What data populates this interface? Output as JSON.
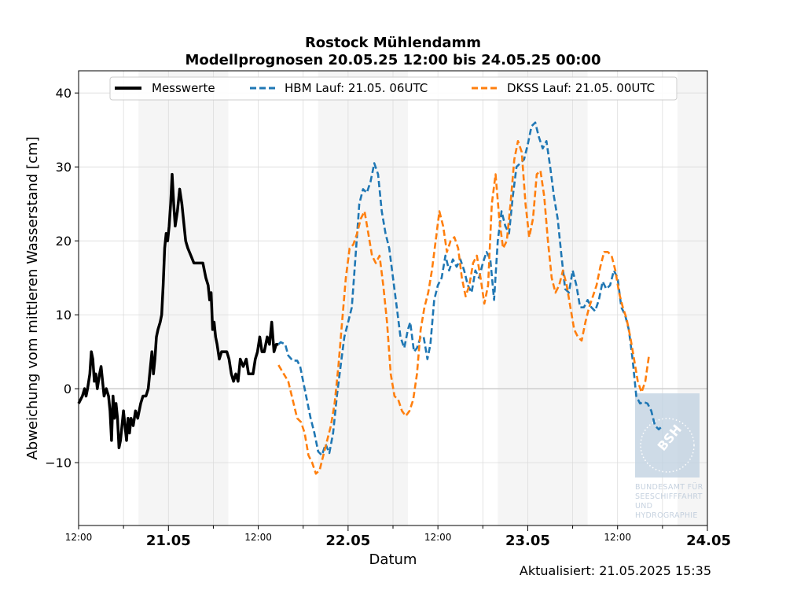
{
  "chart_data": {
    "type": "line",
    "title": [
      "Rostock Mühlendamm",
      "Modellprognosen 20.05.25 12:00 bis 24.05.25 00:00"
    ],
    "xlabel": "Datum",
    "ylabel": "Abweichung vom mittleren Wasserstand [cm]",
    "xlim": [
      0,
      84
    ],
    "ylim": [
      -18.5,
      43
    ],
    "x_unit": "hours since 20.05.25 12:00",
    "y_ticks": [
      {
        "value": -10,
        "label": "−10"
      },
      {
        "value": 0,
        "label": "0"
      },
      {
        "value": 10,
        "label": "10"
      },
      {
        "value": 20,
        "label": "20"
      },
      {
        "value": 30,
        "label": "30"
      },
      {
        "value": 40,
        "label": "40"
      }
    ],
    "x_ticks_major": [
      {
        "value": 12,
        "label": "21.05"
      },
      {
        "value": 36,
        "label": "22.05"
      },
      {
        "value": 60,
        "label": "23.05"
      },
      {
        "value": 84,
        "label": "24.05"
      }
    ],
    "x_ticks_minor": [
      {
        "value": 0,
        "label": "12:00"
      },
      {
        "value": 24,
        "label": "12:00"
      },
      {
        "value": 48,
        "label": "12:00"
      },
      {
        "value": 72,
        "label": "12:00"
      }
    ],
    "night_bands": [
      [
        8,
        20
      ],
      [
        32,
        44
      ],
      [
        56,
        68
      ],
      [
        80,
        84
      ]
    ],
    "grid": true,
    "legend_position": "top",
    "series": [
      {
        "name": "Messwerte",
        "color": "#000000",
        "style": "solid",
        "points": [
          [
            0,
            -2
          ],
          [
            0.5,
            -1
          ],
          [
            0.8,
            0
          ],
          [
            1,
            -1
          ],
          [
            1.2,
            0
          ],
          [
            1.5,
            2
          ],
          [
            1.7,
            5
          ],
          [
            1.9,
            4
          ],
          [
            2.1,
            1
          ],
          [
            2.3,
            2
          ],
          [
            2.5,
            0
          ],
          [
            2.8,
            2
          ],
          [
            3,
            3
          ],
          [
            3.2,
            1
          ],
          [
            3.4,
            -1
          ],
          [
            3.7,
            0
          ],
          [
            4,
            -1
          ],
          [
            4.2,
            -3
          ],
          [
            4.4,
            -7
          ],
          [
            4.6,
            -1
          ],
          [
            4.8,
            -4
          ],
          [
            5,
            -2
          ],
          [
            5.2,
            -4
          ],
          [
            5.4,
            -8
          ],
          [
            5.6,
            -7
          ],
          [
            5.8,
            -5
          ],
          [
            6,
            -3
          ],
          [
            6.2,
            -5
          ],
          [
            6.4,
            -7
          ],
          [
            6.6,
            -4
          ],
          [
            6.8,
            -6
          ],
          [
            7,
            -4
          ],
          [
            7.3,
            -5
          ],
          [
            7.6,
            -3
          ],
          [
            7.9,
            -4
          ],
          [
            8.3,
            -2
          ],
          [
            8.6,
            -1
          ],
          [
            9,
            -1
          ],
          [
            9.3,
            0
          ],
          [
            9.6,
            3
          ],
          [
            9.8,
            5
          ],
          [
            10,
            2
          ],
          [
            10.2,
            4
          ],
          [
            10.4,
            7
          ],
          [
            10.6,
            8
          ],
          [
            10.9,
            9
          ],
          [
            11.1,
            10
          ],
          [
            11.3,
            14
          ],
          [
            11.5,
            19
          ],
          [
            11.7,
            21
          ],
          [
            11.9,
            20
          ],
          [
            12.1,
            22
          ],
          [
            12.3,
            25
          ],
          [
            12.5,
            29
          ],
          [
            12.7,
            25
          ],
          [
            12.9,
            22
          ],
          [
            13.2,
            24
          ],
          [
            13.5,
            27
          ],
          [
            13.8,
            25
          ],
          [
            14,
            23
          ],
          [
            14.3,
            20
          ],
          [
            14.6,
            19
          ],
          [
            15,
            18
          ],
          [
            15.4,
            17
          ],
          [
            15.8,
            17
          ],
          [
            16.2,
            17
          ],
          [
            16.6,
            17
          ],
          [
            17,
            15
          ],
          [
            17.3,
            14
          ],
          [
            17.5,
            12
          ],
          [
            17.7,
            13
          ],
          [
            17.9,
            8
          ],
          [
            18.1,
            9
          ],
          [
            18.3,
            7
          ],
          [
            18.5,
            6
          ],
          [
            18.8,
            4
          ],
          [
            19.1,
            5
          ],
          [
            19.5,
            5
          ],
          [
            19.8,
            5
          ],
          [
            20.1,
            4
          ],
          [
            20.4,
            2
          ],
          [
            20.7,
            1
          ],
          [
            21,
            2
          ],
          [
            21.3,
            1
          ],
          [
            21.6,
            4
          ],
          [
            22,
            3
          ],
          [
            22.4,
            4
          ],
          [
            22.7,
            2
          ],
          [
            23,
            2
          ],
          [
            23.3,
            2
          ],
          [
            23.6,
            4
          ],
          [
            23.9,
            5
          ],
          [
            24.2,
            7
          ],
          [
            24.5,
            5
          ],
          [
            24.8,
            5
          ],
          [
            25.2,
            7
          ],
          [
            25.5,
            6
          ],
          [
            25.8,
            9
          ],
          [
            26.1,
            5
          ],
          [
            26.4,
            6
          ],
          [
            26.7,
            6
          ]
        ]
      },
      {
        "name": "HBM Lauf: 21.05. 06UTC",
        "color": "#1f77b4",
        "style": "dashed",
        "points": [
          [
            26.7,
            6
          ],
          [
            27,
            6.3
          ],
          [
            27.6,
            6
          ],
          [
            28,
            4.5
          ],
          [
            28.6,
            3.8
          ],
          [
            29.2,
            3.8
          ],
          [
            29.6,
            3
          ],
          [
            30,
            1
          ],
          [
            30.6,
            -2
          ],
          [
            31,
            -4
          ],
          [
            31.5,
            -6
          ],
          [
            32,
            -8.5
          ],
          [
            32.5,
            -9
          ],
          [
            33,
            -7.5
          ],
          [
            33.5,
            -8.7
          ],
          [
            34,
            -6
          ],
          [
            34.5,
            -1
          ],
          [
            35,
            3
          ],
          [
            35.5,
            7
          ],
          [
            36,
            9
          ],
          [
            36.5,
            11
          ],
          [
            37,
            18
          ],
          [
            37.5,
            25
          ],
          [
            38,
            27
          ],
          [
            38.5,
            26.5
          ],
          [
            39,
            28
          ],
          [
            39.5,
            30.5
          ],
          [
            40,
            29
          ],
          [
            40.5,
            24
          ],
          [
            41,
            21
          ],
          [
            41.5,
            19
          ],
          [
            42,
            15
          ],
          [
            42.5,
            11
          ],
          [
            43,
            7
          ],
          [
            43.5,
            5.5
          ],
          [
            44,
            8
          ],
          [
            44.3,
            9
          ],
          [
            44.8,
            5
          ],
          [
            45.2,
            5.5
          ],
          [
            45.7,
            7
          ],
          [
            46.1,
            7
          ],
          [
            46.6,
            4
          ],
          [
            47,
            6
          ],
          [
            47.5,
            12
          ],
          [
            48,
            14
          ],
          [
            48.5,
            15
          ],
          [
            49,
            18
          ],
          [
            49.5,
            16
          ],
          [
            50,
            17.5
          ],
          [
            50.5,
            16.5
          ],
          [
            51,
            17.5
          ],
          [
            51.5,
            16
          ],
          [
            52,
            14
          ],
          [
            52.5,
            13
          ],
          [
            53,
            16
          ],
          [
            53.5,
            15
          ],
          [
            54,
            17
          ],
          [
            54.5,
            18.5
          ],
          [
            55,
            17.5
          ],
          [
            55.5,
            12
          ],
          [
            56,
            20
          ],
          [
            56.5,
            24
          ],
          [
            57,
            22
          ],
          [
            57.5,
            21
          ],
          [
            58,
            26
          ],
          [
            58.5,
            30
          ],
          [
            59,
            30.5
          ],
          [
            59.5,
            31
          ],
          [
            60,
            33
          ],
          [
            60.5,
            35.5
          ],
          [
            61,
            36
          ],
          [
            61.5,
            34
          ],
          [
            62,
            32.5
          ],
          [
            62.5,
            33.5
          ],
          [
            63,
            30
          ],
          [
            63.5,
            26
          ],
          [
            64,
            23
          ],
          [
            64.5,
            18
          ],
          [
            65,
            13.5
          ],
          [
            65.5,
            13
          ],
          [
            66,
            16
          ],
          [
            66.5,
            14
          ],
          [
            67,
            11
          ],
          [
            67.5,
            11
          ],
          [
            68,
            12
          ],
          [
            68.5,
            11
          ],
          [
            69,
            10.5
          ],
          [
            69.5,
            12
          ],
          [
            70,
            14.5
          ],
          [
            70.5,
            13.5
          ],
          [
            71,
            14
          ],
          [
            71.5,
            16
          ],
          [
            72,
            15
          ],
          [
            72.5,
            11
          ],
          [
            73,
            10
          ],
          [
            73.5,
            8
          ],
          [
            74,
            4
          ],
          [
            74.5,
            -1
          ],
          [
            75,
            -2
          ],
          [
            75.5,
            -1.8
          ],
          [
            76,
            -2
          ],
          [
            76.5,
            -3
          ],
          [
            77,
            -5
          ],
          [
            77.5,
            -5.5
          ],
          [
            78,
            -5
          ]
        ]
      },
      {
        "name": "DKSS Lauf: 21.05. 00UTC",
        "color": "#ff7f0e",
        "style": "dashed",
        "points": [
          [
            26.7,
            3.2
          ],
          [
            27.4,
            2
          ],
          [
            28,
            1
          ],
          [
            28.6,
            -1.5
          ],
          [
            29.2,
            -4
          ],
          [
            29.7,
            -4.5
          ],
          [
            30.2,
            -6
          ],
          [
            30.7,
            -9
          ],
          [
            31.2,
            -10
          ],
          [
            31.7,
            -11.5
          ],
          [
            32.2,
            -11
          ],
          [
            32.7,
            -9
          ],
          [
            33.2,
            -7
          ],
          [
            33.7,
            -5
          ],
          [
            34.2,
            -2
          ],
          [
            34.7,
            3
          ],
          [
            35.2,
            9
          ],
          [
            35.7,
            15
          ],
          [
            36.2,
            19
          ],
          [
            36.7,
            19.5
          ],
          [
            37.2,
            21
          ],
          [
            37.7,
            23
          ],
          [
            38.2,
            24
          ],
          [
            38.7,
            21
          ],
          [
            39.2,
            18
          ],
          [
            39.7,
            17
          ],
          [
            40.2,
            18
          ],
          [
            40.7,
            14
          ],
          [
            41.2,
            9
          ],
          [
            41.7,
            2
          ],
          [
            42.2,
            -1
          ],
          [
            42.7,
            -1.5
          ],
          [
            43.2,
            -3
          ],
          [
            43.7,
            -3.7
          ],
          [
            44.2,
            -3
          ],
          [
            44.7,
            -1.5
          ],
          [
            45.2,
            2
          ],
          [
            45.7,
            8
          ],
          [
            46.2,
            11
          ],
          [
            46.7,
            13
          ],
          [
            47.2,
            16
          ],
          [
            47.7,
            20
          ],
          [
            48.2,
            24
          ],
          [
            48.7,
            22
          ],
          [
            49.2,
            18.5
          ],
          [
            49.7,
            20
          ],
          [
            50.2,
            20.5
          ],
          [
            50.7,
            19
          ],
          [
            51.2,
            15
          ],
          [
            51.7,
            12.5
          ],
          [
            52.2,
            14
          ],
          [
            52.7,
            17
          ],
          [
            53.2,
            18
          ],
          [
            53.7,
            15
          ],
          [
            54.2,
            11.5
          ],
          [
            54.7,
            14
          ],
          [
            55.2,
            25
          ],
          [
            55.7,
            29
          ],
          [
            56.2,
            23
          ],
          [
            56.7,
            19
          ],
          [
            57.2,
            20
          ],
          [
            57.7,
            25
          ],
          [
            58.2,
            31
          ],
          [
            58.7,
            33.5
          ],
          [
            59.2,
            32
          ],
          [
            59.7,
            25
          ],
          [
            60.2,
            20.5
          ],
          [
            60.7,
            23
          ],
          [
            61.2,
            29
          ],
          [
            61.7,
            29.5
          ],
          [
            62.2,
            26
          ],
          [
            62.7,
            20
          ],
          [
            63.2,
            15
          ],
          [
            63.7,
            13
          ],
          [
            64.2,
            14
          ],
          [
            64.7,
            16
          ],
          [
            65.2,
            14
          ],
          [
            65.7,
            11
          ],
          [
            66.2,
            8
          ],
          [
            66.7,
            7
          ],
          [
            67.2,
            6.5
          ],
          [
            67.7,
            9
          ],
          [
            68.2,
            11
          ],
          [
            68.7,
            12.5
          ],
          [
            69.2,
            14
          ],
          [
            69.7,
            16.5
          ],
          [
            70.2,
            18.5
          ],
          [
            70.7,
            18.5
          ],
          [
            71.2,
            18
          ],
          [
            71.7,
            16
          ],
          [
            72.2,
            13
          ],
          [
            72.7,
            11
          ],
          [
            73.2,
            9.5
          ],
          [
            73.7,
            7
          ],
          [
            74.2,
            4
          ],
          [
            74.7,
            1
          ],
          [
            75.2,
            -0.5
          ],
          [
            75.7,
            1
          ],
          [
            76.2,
            4.5
          ]
        ]
      }
    ]
  },
  "footer": {
    "updated": "Aktualisiert: 21.05.2025 15:35"
  },
  "watermark": {
    "logo_text": "BSH",
    "org_lines": [
      "BUNDESAMT FÜR",
      "SEESCHIFFFAHRT",
      "UND",
      "HYDROGRAPHIE"
    ]
  }
}
